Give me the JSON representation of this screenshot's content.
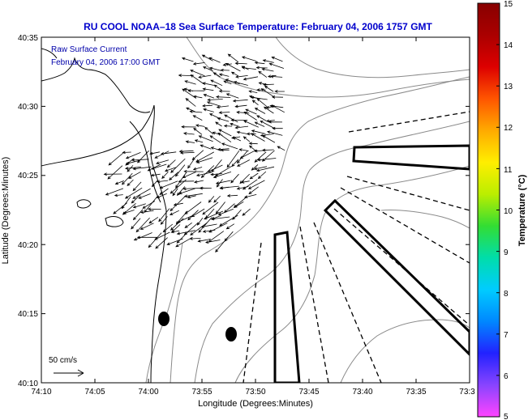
{
  "title": "RU COOL  NOAA–18  Sea Surface Temperature:  February 04, 2006 1757 GMT",
  "annotation": {
    "line1": "Raw Surface Current",
    "line2": "February 04, 2006 17:00 GMT"
  },
  "scale_bar": {
    "label": "50 cm/s"
  },
  "axes": {
    "xlabel": "Longitude (Degrees:Minutes)",
    "ylabel": "Latitude (Degrees:Minutes)",
    "x_ticks": [
      "74:10",
      "74:05",
      "74:00",
      "73:55",
      "73:50",
      "73:45",
      "73:40",
      "73:35",
      "73:3"
    ],
    "y_ticks": [
      "40:35",
      "40:30",
      "40:25",
      "40:20",
      "40:15",
      "40:10"
    ]
  },
  "colorbar": {
    "label": "Temperature (°C)",
    "ticks": [
      "15",
      "14",
      "13",
      "12",
      "11",
      "10",
      "9",
      "8",
      "7",
      "6",
      "5"
    ],
    "colors": [
      "#ff44ff",
      "#8844ff",
      "#2222ff",
      "#0088ff",
      "#00ccff",
      "#00ddaa",
      "#33dd33",
      "#bbee00",
      "#ffee00",
      "#ffaa00",
      "#ff5500",
      "#dd0000",
      "#aa0000",
      "#880000"
    ]
  },
  "colors": {
    "title": "#0000cc",
    "annotation": "#0000aa",
    "frame": "#000000",
    "contour": "#888888",
    "coast": "#000000"
  }
}
